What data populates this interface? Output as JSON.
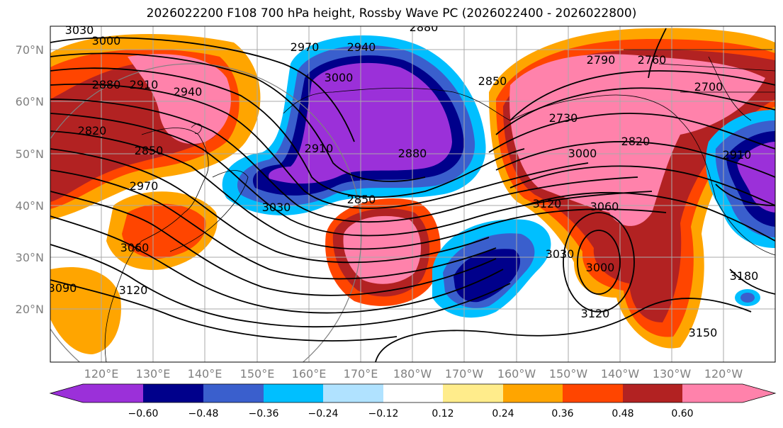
{
  "title": "2026022200 F108 700 hPa height, Rossby Wave PC (2026022400 - 2026022800)",
  "lat_labels": [
    "70°N",
    "60°N",
    "50°N",
    "40°N",
    "30°N",
    "20°N"
  ],
  "lon_labels": [
    "120°E",
    "130°E",
    "140°E",
    "150°E",
    "160°E",
    "170°E",
    "180°W",
    "170°W",
    "160°W",
    "150°W",
    "140°W",
    "130°W",
    "120°W"
  ],
  "colorbar": {
    "ticks": [
      "−0.60",
      "−0.48",
      "−0.36",
      "−0.24",
      "−0.12",
      "0.12",
      "0.24",
      "0.36",
      "0.48",
      "0.60"
    ],
    "colors": [
      "#9b30d9",
      "#00008b",
      "#3a5fcd",
      "#00bfff",
      "#b0e2ff",
      "#ffffff",
      "#ffec8b",
      "#ffa500",
      "#ff4500",
      "#b22222",
      "#ff82ab"
    ]
  },
  "contour_labels": [
    {
      "text": "3030"
    },
    {
      "text": "3000"
    },
    {
      "text": "2910"
    },
    {
      "text": "2940"
    },
    {
      "text": "2880"
    },
    {
      "text": "2820"
    },
    {
      "text": "2850"
    },
    {
      "text": "2970"
    },
    {
      "text": "3060"
    },
    {
      "text": "3120"
    },
    {
      "text": "3090"
    },
    {
      "text": "2970"
    },
    {
      "text": "2940"
    },
    {
      "text": "3000"
    },
    {
      "text": "2910"
    },
    {
      "text": "2880"
    },
    {
      "text": "2850"
    },
    {
      "text": "3030"
    },
    {
      "text": "2850"
    },
    {
      "text": "2790"
    },
    {
      "text": "2760"
    },
    {
      "text": "2700"
    },
    {
      "text": "2730"
    },
    {
      "text": "2820"
    },
    {
      "text": "3000"
    },
    {
      "text": "2910"
    },
    {
      "text": "3120"
    },
    {
      "text": "3060"
    },
    {
      "text": "3030"
    },
    {
      "text": "3000"
    },
    {
      "text": "3120"
    },
    {
      "text": "3150"
    },
    {
      "text": "3180"
    },
    {
      "text": "2880"
    }
  ]
}
